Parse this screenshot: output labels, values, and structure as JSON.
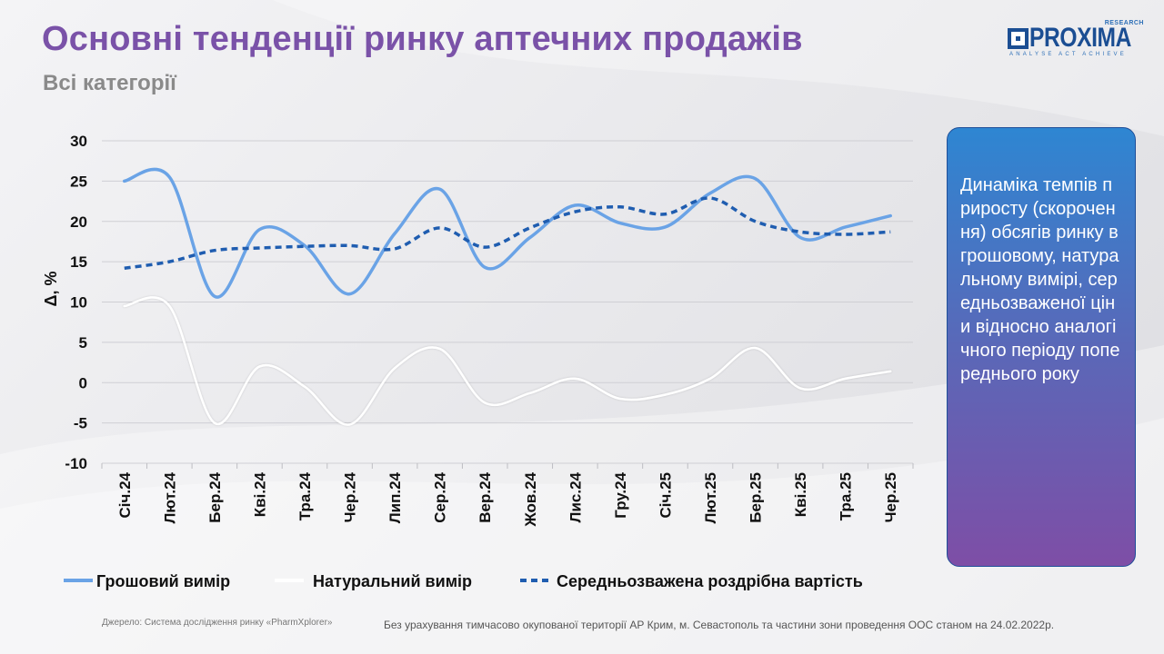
{
  "header": {
    "title": "Основні тенденції ринку аптечних продажів",
    "subtitle": "Всі категорії"
  },
  "logo": {
    "name": "PROXIMA",
    "research": "RESEARCH",
    "tagline": "ANALYSE ACT ACHIEVE"
  },
  "info_box": {
    "text": "Динаміка темпів приросту (скорочення) обсягів ринку в грошовому, натуральному вимірі, середньозваженої ціни відносно аналогічного періоду попереднього року"
  },
  "footer": {
    "source": "Джерело: Система дослідження ринку «PharmXplorer»",
    "note": "Без урахування тимчасово окупованої території АР Крим, м. Севастополь та частини зони проведення ООС станом на 24.02.2022р."
  },
  "colors": {
    "money": "#6aa3e6",
    "natural": "#ffffff",
    "price": "#1f5db0",
    "title": "#7a52a8"
  },
  "chart_data": {
    "type": "line",
    "title": "",
    "xlabel": "",
    "ylabel": "Δ, %",
    "ylim": [
      -10,
      30
    ],
    "yticks": [
      -10,
      -5,
      0,
      5,
      10,
      15,
      20,
      25,
      30
    ],
    "grid": true,
    "legend_position": "bottom",
    "categories": [
      "Січ.24",
      "Лют.24",
      "Бер.24",
      "Кві.24",
      "Тра.24",
      "Чер.24",
      "Лип.24",
      "Сер.24",
      "Вер.24",
      "Жов.24",
      "Лис.24",
      "Гру.24",
      "Січ.25",
      "Лют.25",
      "Бер.25",
      "Кві.25",
      "Тра.25",
      "Чер.25"
    ],
    "series": [
      {
        "name": "Грошовий вимір",
        "style": "solid",
        "values": [
          25,
          25.5,
          10.7,
          19,
          17,
          11,
          18.5,
          24,
          14.3,
          18,
          22,
          19.8,
          19.3,
          23.5,
          25.3,
          18,
          19.3,
          20.7
        ]
      },
      {
        "name": "Натуральний вимір",
        "style": "solid",
        "values": [
          9.5,
          9.5,
          -5,
          2,
          -0.5,
          -5.2,
          1.8,
          4.2,
          -2.5,
          -1.3,
          0.5,
          -2,
          -1.5,
          0.5,
          4.3,
          -0.7,
          0.5,
          1.4
        ]
      },
      {
        "name": "Середньозважена роздрібна вартість",
        "style": "dashed",
        "values": [
          14.2,
          15,
          16.4,
          16.7,
          16.9,
          17,
          16.6,
          19.2,
          16.8,
          19.2,
          21.2,
          21.8,
          20.9,
          22.9,
          20,
          18.7,
          18.4,
          18.7
        ]
      }
    ]
  }
}
